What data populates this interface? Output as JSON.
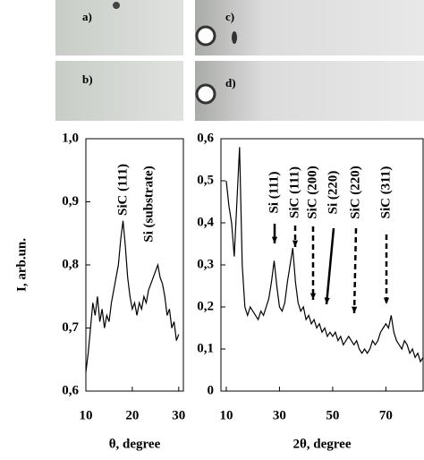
{
  "panels": [
    {
      "label": "a)"
    },
    {
      "label": "b)"
    },
    {
      "label": "c)"
    },
    {
      "label": "d)"
    }
  ],
  "chart_data": [
    {
      "type": "line",
      "ylabel": "I, arb.un.",
      "xlabel": "θ, degree",
      "xlim": [
        10,
        31
      ],
      "xticks": [
        10,
        20,
        30
      ],
      "ylim": [
        0.6,
        1.0
      ],
      "yticks": [
        {
          "value": 0.6,
          "label": "0,6"
        },
        {
          "value": 0.7,
          "label": "0,7"
        },
        {
          "value": 0.8,
          "label": "0,8"
        },
        {
          "value": 0.9,
          "label": "0,9"
        },
        {
          "value": 1.0,
          "label": "1,0"
        }
      ],
      "annotations": [
        "SiC (111)",
        "Si (substrate)"
      ],
      "x": [
        10,
        10.5,
        11,
        11.5,
        12,
        12.5,
        13,
        13.5,
        14,
        14.5,
        15,
        15.5,
        16,
        16.5,
        17,
        17.5,
        18,
        18.5,
        19,
        19.5,
        20,
        20.5,
        21,
        21.5,
        22,
        22.5,
        23,
        23.5,
        24,
        24.5,
        25,
        25.5,
        26,
        26.5,
        27,
        27.5,
        28,
        28.5,
        29,
        29.5,
        30
      ],
      "series": [
        {
          "color": "#000000",
          "values": [
            0.63,
            0.66,
            0.7,
            0.74,
            0.72,
            0.75,
            0.71,
            0.73,
            0.7,
            0.72,
            0.71,
            0.74,
            0.76,
            0.78,
            0.8,
            0.84,
            0.87,
            0.83,
            0.78,
            0.75,
            0.73,
            0.74,
            0.72,
            0.74,
            0.73,
            0.75,
            0.74,
            0.76,
            0.77,
            0.78,
            0.79,
            0.8,
            0.78,
            0.77,
            0.75,
            0.72,
            0.73,
            0.7,
            0.71,
            0.68,
            0.69
          ]
        }
      ]
    },
    {
      "type": "line",
      "xlabel": "2θ, degree",
      "xlim": [
        8,
        84
      ],
      "xticks": [
        10,
        30,
        50,
        70
      ],
      "ylim": [
        0,
        0.6
      ],
      "yticks": [
        0,
        {
          "value": 0.1,
          "label": "0,1"
        },
        {
          "value": 0.2,
          "label": "0,2"
        },
        {
          "value": 0.3,
          "label": "0,3"
        },
        {
          "value": 0.4,
          "label": "0,4"
        },
        {
          "value": 0.5,
          "label": "0,5"
        },
        {
          "value": 0.6,
          "label": "0,6"
        }
      ],
      "annotations": [
        "Si (111)",
        "SiC (111)",
        "SiC (200)",
        "Si (220)",
        "SiC (220)",
        "SiC (311)"
      ],
      "x": [
        10,
        11,
        12,
        13,
        14,
        15,
        16,
        17,
        18,
        19,
        20,
        21,
        22,
        23,
        24,
        25,
        26,
        27,
        28,
        29,
        30,
        31,
        32,
        33,
        34,
        35,
        36,
        37,
        38,
        39,
        40,
        41,
        42,
        43,
        44,
        45,
        46,
        47,
        48,
        49,
        50,
        51,
        52,
        53,
        54,
        55,
        56,
        57,
        58,
        59,
        60,
        61,
        62,
        63,
        64,
        65,
        66,
        67,
        68,
        69,
        70,
        71,
        72,
        73,
        74,
        75,
        76,
        77,
        78,
        79,
        80,
        81,
        82,
        83,
        84
      ],
      "series": [
        {
          "color": "#000000",
          "values": [
            0.5,
            0.44,
            0.4,
            0.32,
            0.45,
            0.58,
            0.3,
            0.2,
            0.18,
            0.2,
            0.19,
            0.18,
            0.17,
            0.19,
            0.18,
            0.2,
            0.22,
            0.26,
            0.31,
            0.25,
            0.2,
            0.19,
            0.21,
            0.26,
            0.3,
            0.34,
            0.26,
            0.21,
            0.19,
            0.2,
            0.17,
            0.18,
            0.16,
            0.17,
            0.15,
            0.16,
            0.14,
            0.15,
            0.13,
            0.14,
            0.13,
            0.14,
            0.12,
            0.13,
            0.11,
            0.12,
            0.13,
            0.12,
            0.11,
            0.12,
            0.1,
            0.09,
            0.1,
            0.09,
            0.1,
            0.12,
            0.11,
            0.12,
            0.14,
            0.15,
            0.16,
            0.15,
            0.18,
            0.14,
            0.12,
            0.11,
            0.1,
            0.12,
            0.11,
            0.09,
            0.1,
            0.08,
            0.09,
            0.07,
            0.08
          ]
        }
      ]
    }
  ]
}
